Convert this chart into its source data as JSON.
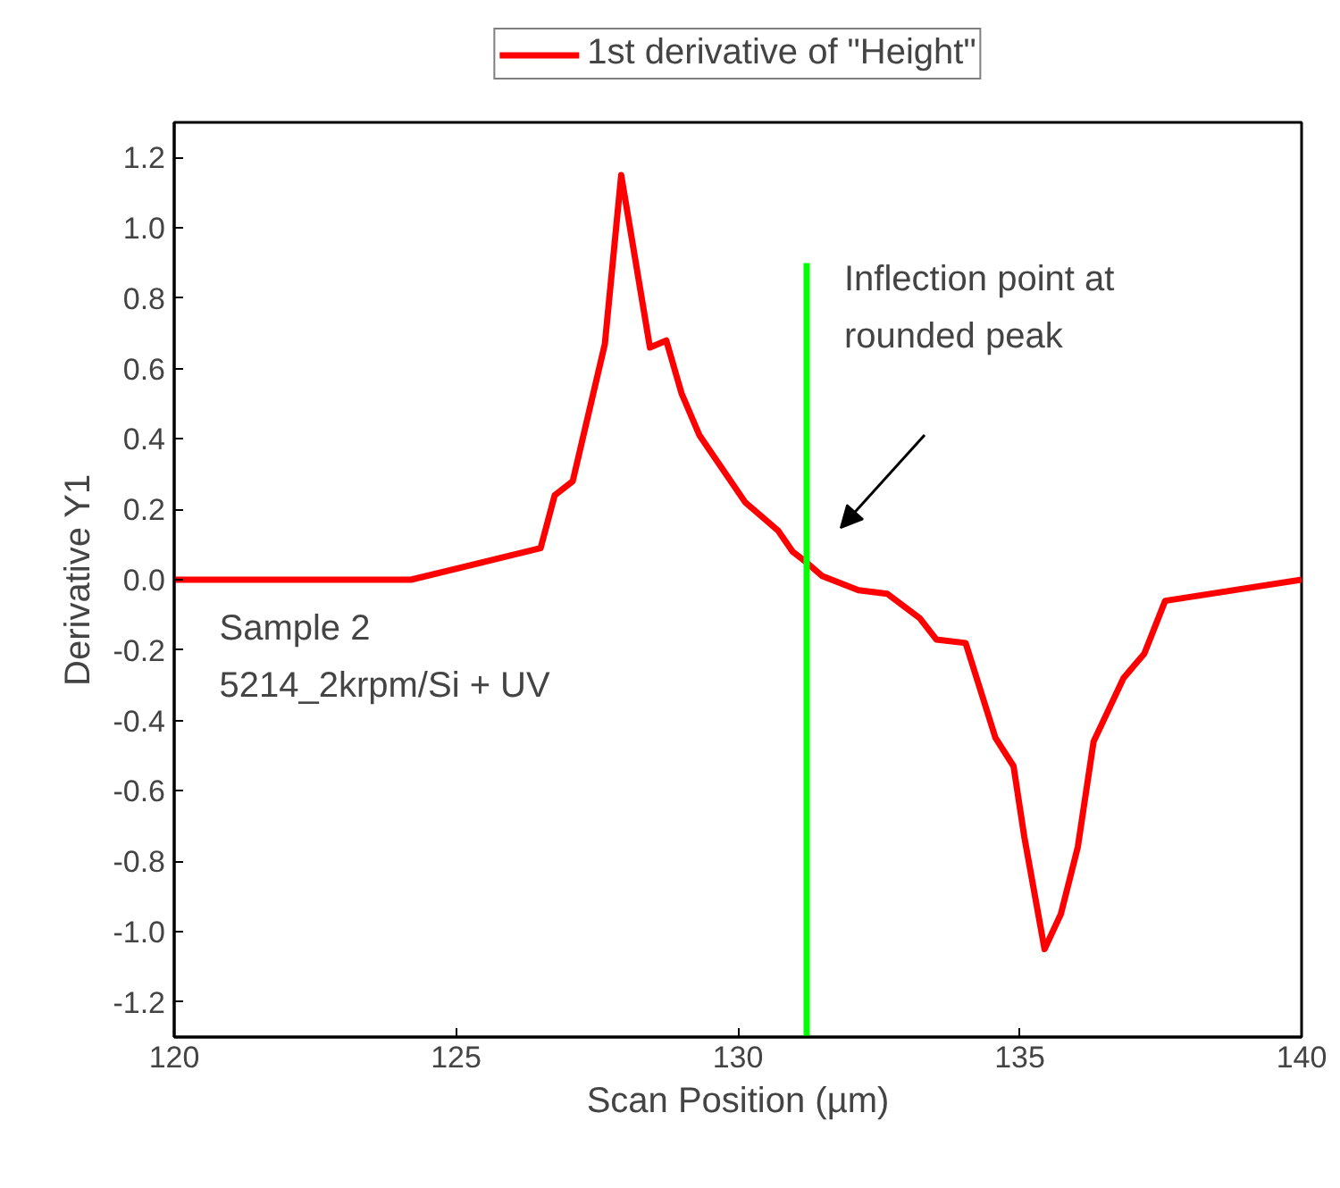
{
  "chart_data": {
    "type": "line",
    "xlabel": "Scan Position (µm)",
    "ylabel": "Derivative Y1",
    "xlim": [
      120,
      140
    ],
    "xticks": [
      120,
      125,
      130,
      135,
      140
    ],
    "ylim": [
      -1.3,
      1.3
    ],
    "yticks": [
      {
        "value": -1.2,
        "label": "-1.2"
      },
      {
        "value": -1.0,
        "label": "-1.0"
      },
      {
        "value": -0.8,
        "label": "-0.8"
      },
      {
        "value": -0.6,
        "label": "-0.6"
      },
      {
        "value": -0.4,
        "label": "-0.4"
      },
      {
        "value": -0.2,
        "label": "-0.2"
      },
      {
        "value": 0,
        "label": "0.0"
      },
      {
        "value": 0.2,
        "label": "0.2"
      },
      {
        "value": 0.4,
        "label": "0.4"
      },
      {
        "value": 0.6,
        "label": "0.6"
      },
      {
        "value": 0.8,
        "label": "0.8"
      },
      {
        "value": 1.0,
        "label": "1.0"
      },
      {
        "value": 1.2,
        "label": "1.2"
      }
    ],
    "grid": false,
    "legend": "top",
    "line_style": "solid",
    "marker": "none",
    "series": [
      {
        "name": "1st derivative of \"Height\"",
        "color": "#ff0000",
        "x": [
          120,
          124.2,
          126.5,
          126.75,
          127.07,
          127.64,
          127.93,
          128.44,
          128.73,
          129.0,
          129.32,
          130.13,
          130.71,
          130.97,
          131.21,
          131.5,
          132.14,
          132.65,
          133.23,
          133.52,
          134.04,
          134.57,
          134.89,
          135.08,
          135.44,
          135.73,
          136.03,
          136.31,
          136.84,
          137.21,
          137.58,
          140
        ],
        "values": [
          0,
          0,
          0.09,
          0.24,
          0.28,
          0.67,
          1.15,
          0.66,
          0.68,
          0.53,
          0.41,
          0.22,
          0.14,
          0.08,
          0.05,
          0.01,
          -0.03,
          -0.04,
          -0.11,
          -0.17,
          -0.18,
          -0.45,
          -0.53,
          -0.73,
          -1.05,
          -0.95,
          -0.76,
          -0.46,
          -0.28,
          -0.21,
          -0.06,
          0
        ]
      },
      {
        "color": "#00ff00",
        "x": [
          131.22,
          131.22
        ],
        "values": [
          -1.3,
          0.9
        ]
      }
    ],
    "annotations": [
      "Inflection point at\nrounded peak",
      "Sample 2",
      "5214_2krpm/Si + UV"
    ]
  }
}
